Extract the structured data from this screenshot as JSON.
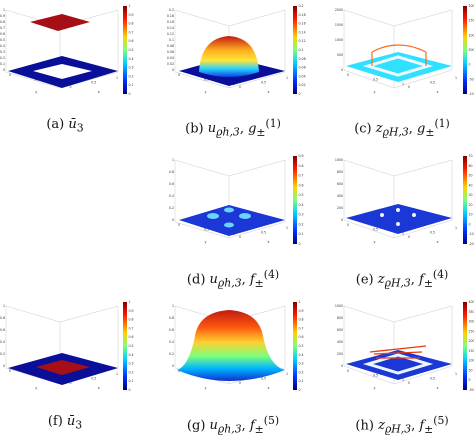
{
  "panels": [
    {
      "id": "a",
      "caption": "(a) ",
      "zticks": [
        "1",
        "0.9",
        "0.8",
        "0.7",
        "0.6",
        "0.5",
        "0.4",
        "0.3",
        "0.2",
        "0.1",
        "0"
      ],
      "cticks": [
        "1",
        "0.9",
        "0.8",
        "0.7",
        "0.6",
        "0.5",
        "0.4",
        "0.3",
        "0.2",
        "0.1",
        "0"
      ],
      "xticks": [
        "0",
        "0.5",
        "1"
      ],
      "yticks": [
        "0",
        "0.5",
        "1"
      ],
      "xlabel": "y",
      "ylabel": "x"
    },
    {
      "id": "b",
      "caption": "(b) ",
      "zticks": [
        "0.2",
        "0.18",
        "0.16",
        "0.14",
        "0.12",
        "0.1",
        "0.08",
        "0.06",
        "0.04",
        "0.02",
        "0"
      ],
      "cticks": [
        "0.2",
        "0.18",
        "0.16",
        "0.14",
        "0.12",
        "0.1",
        "0.08",
        "0.06",
        "0.04",
        "0.02",
        "0"
      ],
      "xticks": [
        "0",
        "0.5",
        "1"
      ],
      "yticks": [
        "0",
        "0.5",
        "1"
      ],
      "xlabel": "y",
      "ylabel": "x"
    },
    {
      "id": "c",
      "caption": "(c) ",
      "zticks": [
        "2000",
        "1500",
        "1000",
        "500",
        "0"
      ],
      "cticks": [
        "2000",
        "1500",
        "1000",
        "500",
        "0",
        "-500",
        "-1000"
      ],
      "xticks": [
        "0",
        "0.5",
        "1"
      ],
      "yticks": [
        "0",
        "0.5",
        "1"
      ],
      "xlabel": "y",
      "ylabel": "x"
    },
    {
      "id": "d",
      "caption": "(d) ",
      "zticks": [
        "1",
        "0.8",
        "0.6",
        "0.4",
        "0.2",
        "0"
      ],
      "cticks": [
        "0.9",
        "0.8",
        "0.7",
        "0.6",
        "0.5",
        "0.4",
        "0.3",
        "0.2",
        "0.1",
        "0"
      ],
      "xticks": [
        "0",
        "0.5",
        "1"
      ],
      "yticks": [
        "0",
        "0.5",
        "1"
      ],
      "xlabel": "y",
      "ylabel": "x"
    },
    {
      "id": "e",
      "caption": "(e) ",
      "zticks": [
        "1000",
        "800",
        "600",
        "400",
        "200",
        "0"
      ],
      "cticks": [
        "70",
        "60",
        "50",
        "40",
        "30",
        "20",
        "10",
        "0",
        "-10",
        "-20"
      ],
      "xticks": [
        "0",
        "0.5",
        "1"
      ],
      "yticks": [
        "0",
        "0.5",
        "1"
      ],
      "xlabel": "y",
      "ylabel": "x"
    },
    {
      "id": "f",
      "caption": "(f) ",
      "zticks": [
        "1",
        "0.8",
        "0.6",
        "0.4",
        "0.2",
        "0"
      ],
      "cticks": [
        "1",
        "0.9",
        "0.8",
        "0.7",
        "0.6",
        "0.5",
        "0.4",
        "0.3",
        "0.2",
        "0.1",
        "0"
      ],
      "xticks": [
        "0",
        "0.5",
        "1"
      ],
      "yticks": [
        "0",
        "0.5",
        "1"
      ],
      "xlabel": "y",
      "ylabel": "x"
    },
    {
      "id": "g",
      "caption": "(g) ",
      "zticks": [
        "1",
        "0.8",
        "0.6",
        "0.4",
        "0.2",
        "0"
      ],
      "cticks": [
        "1",
        "0.9",
        "0.8",
        "0.7",
        "0.6",
        "0.5",
        "0.4",
        "0.3",
        "0.2",
        "0.1",
        "0"
      ],
      "xticks": [
        "0",
        "0.5",
        "1"
      ],
      "yticks": [
        "0",
        "0.5",
        "1"
      ],
      "xlabel": "y",
      "ylabel": "x"
    },
    {
      "id": "h",
      "caption": "(h) ",
      "zticks": [
        "1000",
        "800",
        "600",
        "400",
        "200",
        "0"
      ],
      "cticks": [
        "400",
        "350",
        "300",
        "250",
        "200",
        "150",
        "100",
        "50",
        "0",
        "-50"
      ],
      "xticks": [
        "0",
        "0.5",
        "1"
      ],
      "yticks": [
        "0",
        "0.5",
        "1"
      ],
      "xlabel": "y",
      "ylabel": "x"
    }
  ],
  "colors": {
    "low": "#0a0f9a",
    "high": "#a50f15",
    "mid": "#2fe0ff",
    "peak": "#ff9a1a"
  }
}
